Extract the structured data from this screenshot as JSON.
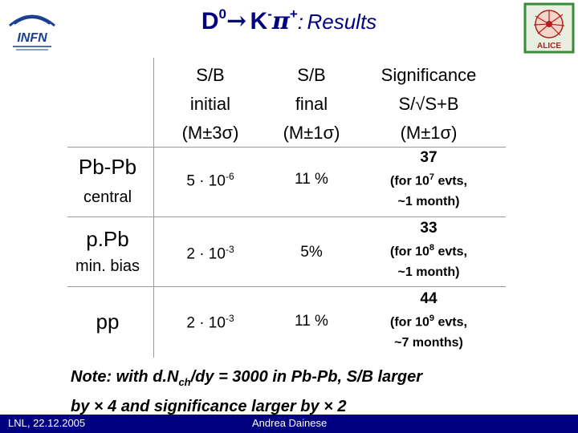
{
  "header": {
    "title_main": "D",
    "title_sup0": "0",
    "title_arrow": "→",
    "title_k": "K",
    "title_minus": "-",
    "title_pi": "π",
    "title_plus": "+",
    "title_colon": ":",
    "title_results": "Results"
  },
  "logos": {
    "infn_text": "INFN",
    "alice_text": "ALICE"
  },
  "table": {
    "columns": [
      {
        "line1": "S/B",
        "line2": "initial",
        "line3": "(M±3σ)"
      },
      {
        "line1": "S/B",
        "line2": "final",
        "line3": "(M±1σ)"
      },
      {
        "line1": "Significance",
        "line2": "S/√S+B",
        "line3": "(M±1σ)"
      }
    ],
    "rows": [
      {
        "name": "Pb-Pb",
        "sub": "central",
        "sb_initial_base": "5 · 10",
        "sb_initial_exp": "-6",
        "sb_final": "11 %",
        "significance": "37",
        "sig_note_a": "(for 10",
        "sig_note_exp": "7",
        "sig_note_b": " evts,",
        "sig_note_c": "~1 month)"
      },
      {
        "name": "p.Pb",
        "sub": "min. bias",
        "sb_initial_base": "2 · 10",
        "sb_initial_exp": "-3",
        "sb_final": "5%",
        "significance": "33",
        "sig_note_a": "(for 10",
        "sig_note_exp": "8",
        "sig_note_b": " evts,",
        "sig_note_c": "~1 month)"
      },
      {
        "name": "pp",
        "sub": "",
        "sb_initial_base": "2 · 10",
        "sb_initial_exp": "-3",
        "sb_final": "11 %",
        "significance": "44",
        "sig_note_a": "(for 10",
        "sig_note_exp": "9",
        "sig_note_b": " evts,",
        "sig_note_c": "~7 months)"
      }
    ]
  },
  "note": {
    "line1_a": "Note: with d.N",
    "line1_sub": "ch",
    "line1_b": "/dy = 3000 in Pb-Pb, S/B larger",
    "line2": "by × 4 and significance larger by × 2"
  },
  "footer": {
    "date": "LNL, 22.12.2005",
    "author": "Andrea Dainese"
  },
  "colors": {
    "title": "#000080",
    "footer_bg": "#000080",
    "grid": "#9a9a9a",
    "alice_red": "#b02020",
    "alice_green": "#3a8a3a"
  }
}
